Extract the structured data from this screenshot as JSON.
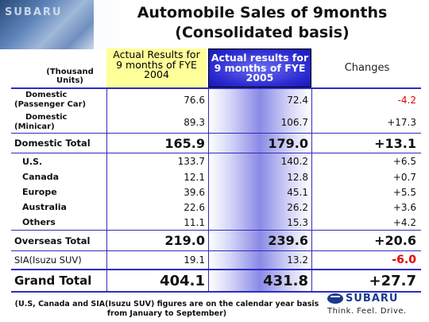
{
  "header": {
    "logo_text": "SUBARU",
    "title_line1": "Automobile Sales of 9months",
    "title_line2": "(Consolidated basis)"
  },
  "table": {
    "units_line1": "(Thousand",
    "units_line2": "Units)",
    "columns": [
      {
        "line1": "Actual Results for",
        "line2": "9 months of FYE",
        "line3": "2004"
      },
      {
        "line1": "Actual results for",
        "line2": "9 months of FYE",
        "line3": "2005"
      },
      {
        "line1": "Changes"
      }
    ],
    "rows": [
      {
        "label1": "Domestic",
        "label2": "(Passenger Car)",
        "v2004": "76.6",
        "v2005": "72.4",
        "change": "-4.2"
      },
      {
        "label1": "Domestic",
        "label2": "(Minicar)",
        "v2004": "89.3",
        "v2005": "106.7",
        "change": "+17.3"
      },
      {
        "label1": "Domestic Total",
        "v2004": "165.9",
        "v2005": "179.0",
        "change": "+13.1"
      },
      {
        "label1": "U.S.",
        "v2004": "133.7",
        "v2005": "140.2",
        "change": "+6.5"
      },
      {
        "label1": "Canada",
        "v2004": "12.1",
        "v2005": "12.8",
        "change": "+0.7"
      },
      {
        "label1": "Europe",
        "v2004": "39.6",
        "v2005": "45.1",
        "change": "+5.5"
      },
      {
        "label1": "Australia",
        "v2004": "22.6",
        "v2005": "26.2",
        "change": "+3.6"
      },
      {
        "label1": "Others",
        "v2004": "11.1",
        "v2005": "15.3",
        "change": "+4.2"
      },
      {
        "label1": "Overseas Total",
        "v2004": "219.0",
        "v2005": "239.6",
        "change": "+20.6"
      },
      {
        "label1": "SIA(Isuzu SUV)",
        "v2004": "19.1",
        "v2005": "13.2",
        "change": "-6.0"
      },
      {
        "label1": "Grand Total",
        "v2004": "404.1",
        "v2005": "431.8",
        "change": "+27.7"
      }
    ]
  },
  "footnote": {
    "line1": "(U.S, Canada and SIA(Isuzu SUV) figures are on the calendar year basis",
    "line2": "from January to September)"
  },
  "brand": {
    "name": "SUBARU",
    "tagline": "Think. Feel. Drive."
  },
  "colors": {
    "negative": "#e00000",
    "rule": "#2d2dc0",
    "highlight_header": "#ffff99",
    "accent_column": "#2a2ad0"
  }
}
